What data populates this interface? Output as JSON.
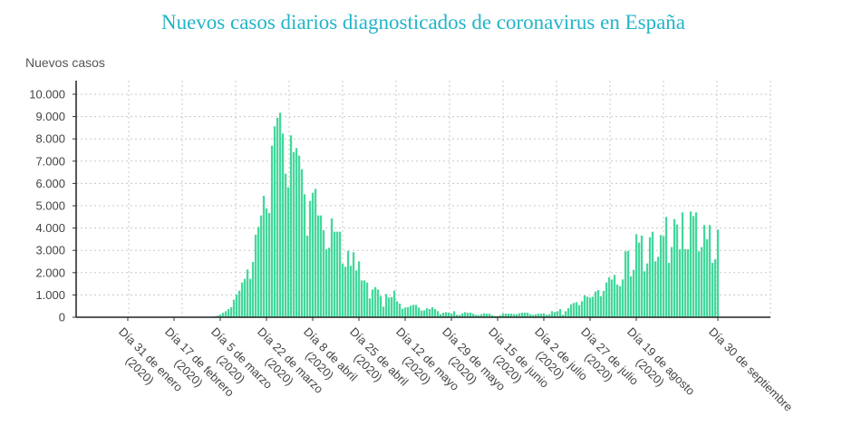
{
  "chart_data": {
    "type": "bar",
    "title": "Nuevos casos diarios diagnosticados de coronavirus en España",
    "ylabel": "Nuevos casos",
    "xlabel": "",
    "ylim": [
      0,
      10000
    ],
    "yticks": [
      0,
      1000,
      2000,
      3000,
      4000,
      5000,
      6000,
      7000,
      8000,
      9000,
      10000
    ],
    "ytick_labels": [
      "0",
      "1.000",
      "2.000",
      "3.000",
      "4.000",
      "5.000",
      "6.000",
      "7.000",
      "8.000",
      "9.000",
      "10.000"
    ],
    "grid": true,
    "bar_color": "#44d89c",
    "title_color": "#22b4c8",
    "x_ticks": [
      {
        "index": 0,
        "label": "Día 31 de enero",
        "year": "(2020)"
      },
      {
        "index": 17,
        "label": "Día 17 de febrero",
        "year": "(2020)"
      },
      {
        "index": 34,
        "label": "Día 5 de marzo",
        "year": "(2020)"
      },
      {
        "index": 51,
        "label": "Día 22 de marzo",
        "year": "(2020)"
      },
      {
        "index": 68,
        "label": "Día 8 de abril",
        "year": "(2020)"
      },
      {
        "index": 85,
        "label": "Día 25 de abril",
        "year": "(2020)"
      },
      {
        "index": 102,
        "label": "Día 12 de mayo",
        "year": "(2020)"
      },
      {
        "index": 119,
        "label": "Día 29 de mayo",
        "year": "(2020)"
      },
      {
        "index": 136,
        "label": "Día 15 de junio",
        "year": "(2020)"
      },
      {
        "index": 153,
        "label": "Día 2 de julio",
        "year": "(2020)"
      },
      {
        "index": 170,
        "label": "Día 27 de julio",
        "year": "(2020)"
      },
      {
        "index": 187,
        "label": "Día 19 de agosto",
        "year": "(2020)"
      },
      {
        "index": 217,
        "label": "Día 30 de septiembre",
        "year": ""
      }
    ],
    "values": [
      0,
      0,
      0,
      0,
      0,
      0,
      0,
      0,
      0,
      0,
      0,
      0,
      0,
      0,
      0,
      0,
      0,
      0,
      0,
      0,
      0,
      0,
      0,
      0,
      0,
      0,
      0,
      0,
      0,
      0,
      15,
      25,
      40,
      70,
      120,
      203,
      271,
      366,
      447,
      786,
      1016,
      1192,
      1558,
      1721,
      2141,
      1721,
      2480,
      3700,
      4051,
      4566,
      5447,
      4878,
      4675,
      7697,
      8564,
      8943,
      9173,
      8238,
      6436,
      5827,
      8157,
      7412,
      7588,
      7249,
      6640,
      5515,
      3659,
      5217,
      5583,
      5759,
      4566,
      4566,
      3902,
      3049,
      3117,
      4431,
      3835,
      3835,
      3835,
      2398,
      2263,
      2981,
      2304,
      2913,
      2100,
      2507,
      1653,
      1650,
      1558,
      840,
      1247,
      1355,
      1247,
      949,
      474,
      1043,
      881,
      908,
      1192,
      718,
      610,
      379,
      434,
      447,
      515,
      556,
      556,
      434,
      298,
      312,
      407,
      366,
      447,
      366,
      271,
      136,
      203,
      230,
      203,
      170,
      271,
      108,
      100,
      176,
      230,
      203,
      203,
      160,
      108,
      90,
      136,
      176,
      160,
      160,
      90,
      54,
      54,
      90,
      160,
      160,
      160,
      160,
      136,
      136,
      176,
      203,
      203,
      203,
      136,
      108,
      136,
      160,
      160,
      176,
      108,
      136,
      271,
      230,
      271,
      366,
      110,
      271,
      407,
      582,
      637,
      678,
      542,
      718,
      976,
      921,
      881,
      921,
      1152,
      1220,
      949,
      1179,
      1558,
      1789,
      1694,
      1897,
      1463,
      1396,
      1694,
      2954,
      2981,
      1829,
      2127,
      3726,
      3347,
      3659,
      2060,
      2412,
      3591,
      3835,
      2507,
      2710,
      3686,
      3632,
      4499,
      2439,
      3144,
      4404,
      4160,
      3049,
      4702,
      3049,
      3049,
      4743,
      4539,
      4702,
      2954,
      3144,
      4133,
      3496,
      4133,
      2439,
      2602,
      3930
    ]
  }
}
